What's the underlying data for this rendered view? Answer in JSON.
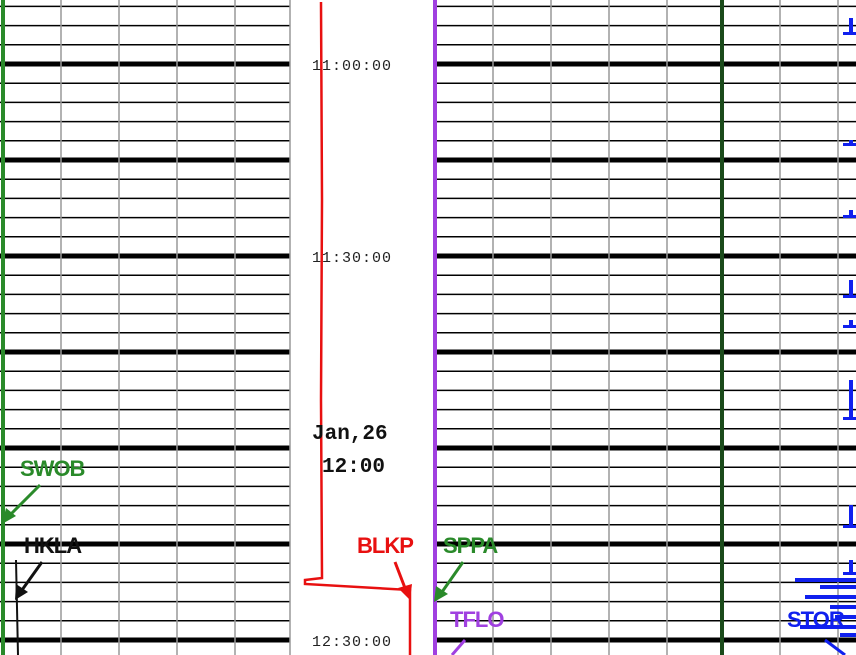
{
  "time_labels": [
    "11:00:00",
    "11:30:00",
    "12:30:00"
  ],
  "date_label": {
    "date": "Jan,26",
    "time": "12:00"
  },
  "stations": [
    "SWOB",
    "HKLA",
    "BLKP",
    "SPPA",
    "TFLO",
    "STOR"
  ]
}
